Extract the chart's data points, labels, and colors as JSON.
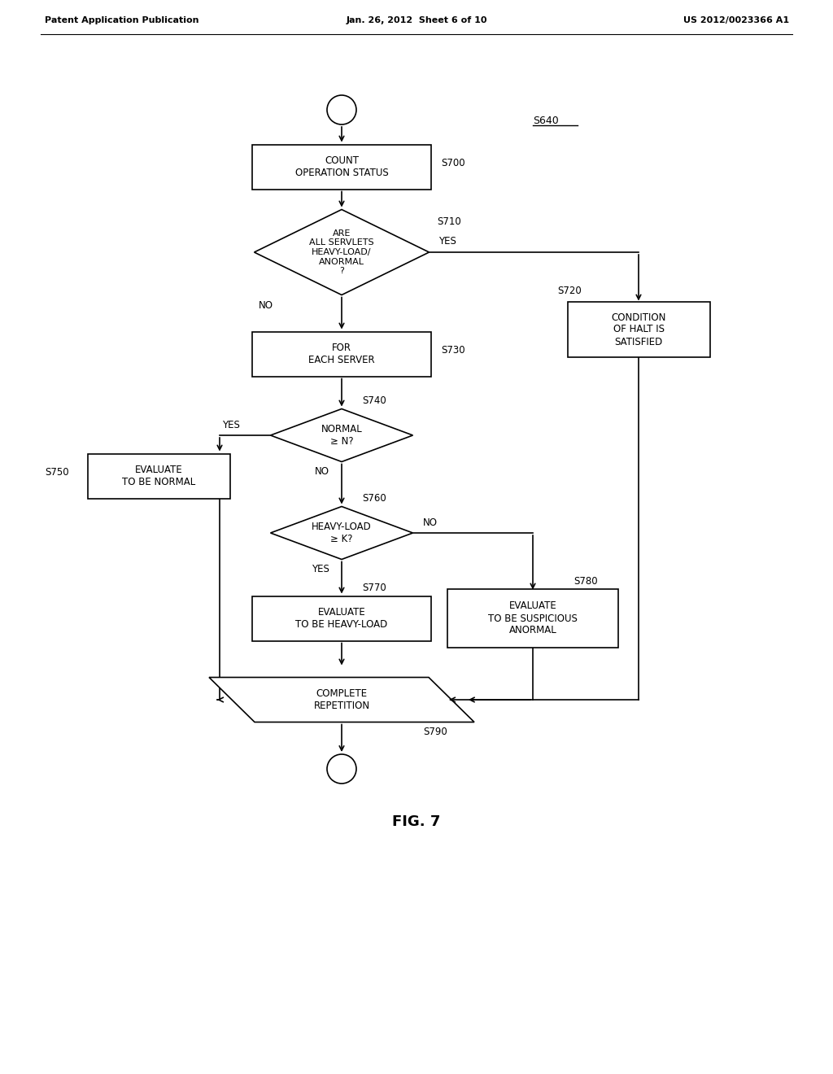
{
  "title": "FIG. 7",
  "header_left": "Patent Application Publication",
  "header_mid": "Jan. 26, 2012  Sheet 6 of 10",
  "header_right": "US 2012/0023366 A1",
  "bg_color": "#ffffff",
  "text_color": "#000000",
  "label_S640": "S640",
  "label_S700": "S700",
  "label_S710": "S710",
  "label_S720": "S720",
  "label_S730": "S730",
  "label_S740": "S740",
  "label_S750": "S750",
  "label_S760": "S760",
  "label_S770": "S770",
  "label_S780": "S780",
  "label_S790": "S790",
  "box_S700_text": "COUNT\nOPERATION STATUS",
  "diamond_S710_text": "ARE\nALL SERVLETS\nHEAVY-LOAD/\nANORMAL\n?",
  "box_S720_text": "CONDITION\nOF HALT IS\nSATISFIED",
  "box_S730_text": "FOR\nEACH SERVER",
  "diamond_S740_text": "NORMAL\n≥ N?",
  "box_S750_text": "EVALUATE\nTO BE NORMAL",
  "diamond_S760_text": "HEAVY-LOAD\n≥ K?",
  "box_S770_text": "EVALUATE\nTO BE HEAVY-LOAD",
  "box_S780_text": "EVALUATE\nTO BE SUSPICIOUS\nANORMAL",
  "parallelogram_S790_text": "COMPLETE\nREPETITION",
  "yes_label": "YES",
  "no_label": "NO"
}
